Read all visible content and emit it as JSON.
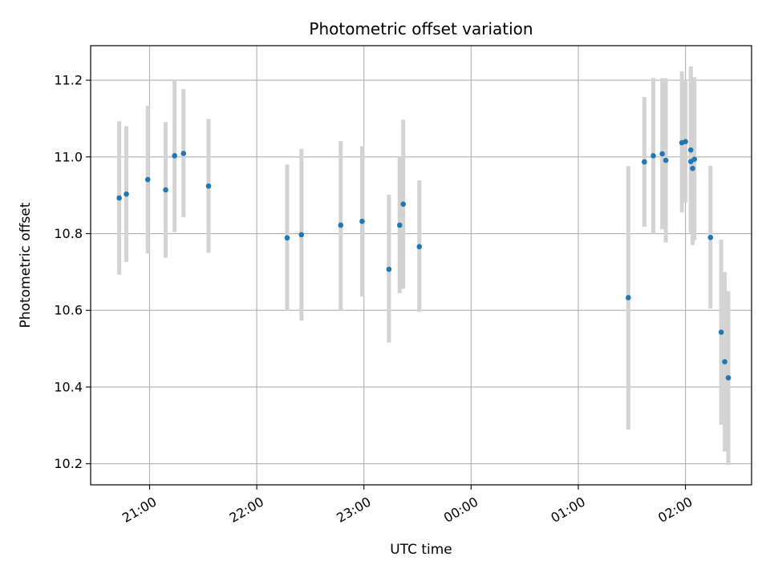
{
  "chart_data": {
    "type": "scatter",
    "title": "Photometric offset variation",
    "xlabel": "UTC time",
    "ylabel": "Photometric offset",
    "grid": true,
    "x_ticks": [
      "21:00",
      "22:00",
      "23:00",
      "00:00",
      "01:00",
      "02:00"
    ],
    "y_ticks": [
      "10.2",
      "10.4",
      "10.6",
      "10.8",
      "11.0",
      "11.2"
    ],
    "xlim": [
      "20:27",
      "02:37"
    ],
    "ylim": [
      10.145,
      11.29
    ],
    "marker_color": "#1f77b4",
    "errorbar_color": "#d3d3d3",
    "series": [
      {
        "points": [
          {
            "x": "20:43",
            "y": 10.893,
            "ylow": 10.693,
            "yhigh": 11.093
          },
          {
            "x": "20:47",
            "y": 10.903,
            "ylow": 10.726,
            "yhigh": 11.08
          },
          {
            "x": "20:59",
            "y": 10.941,
            "ylow": 10.748,
            "yhigh": 11.133
          },
          {
            "x": "21:09",
            "y": 10.914,
            "ylow": 10.737,
            "yhigh": 11.091
          },
          {
            "x": "21:14",
            "y": 11.003,
            "ylow": 10.804,
            "yhigh": 11.202
          },
          {
            "x": "21:19",
            "y": 11.009,
            "ylow": 10.843,
            "yhigh": 11.177
          },
          {
            "x": "21:33",
            "y": 10.924,
            "ylow": 10.75,
            "yhigh": 11.099
          },
          {
            "x": "22:17",
            "y": 10.789,
            "ylow": 10.599,
            "yhigh": 10.98
          },
          {
            "x": "22:25",
            "y": 10.797,
            "ylow": 10.573,
            "yhigh": 11.021
          },
          {
            "x": "22:47",
            "y": 10.822,
            "ylow": 10.6,
            "yhigh": 11.041
          },
          {
            "x": "22:59",
            "y": 10.832,
            "ylow": 10.636,
            "yhigh": 11.028
          },
          {
            "x": "23:14",
            "y": 10.707,
            "ylow": 10.516,
            "yhigh": 10.901
          },
          {
            "x": "23:20",
            "y": 10.822,
            "ylow": 10.645,
            "yhigh": 11.0
          },
          {
            "x": "23:22",
            "y": 10.877,
            "ylow": 10.656,
            "yhigh": 11.097
          },
          {
            "x": "23:31",
            "y": 10.766,
            "ylow": 10.596,
            "yhigh": 10.939
          },
          {
            "x": "01:28",
            "y": 10.633,
            "ylow": 10.289,
            "yhigh": 10.976
          },
          {
            "x": "01:37",
            "y": 10.987,
            "ylow": 10.818,
            "yhigh": 11.156
          },
          {
            "x": "01:42",
            "y": 11.003,
            "ylow": 10.8,
            "yhigh": 11.206
          },
          {
            "x": "01:47",
            "y": 11.008,
            "ylow": 10.811,
            "yhigh": 11.205
          },
          {
            "x": "01:49",
            "y": 10.991,
            "ylow": 10.777,
            "yhigh": 11.205
          },
          {
            "x": "01:58",
            "y": 11.037,
            "ylow": 10.855,
            "yhigh": 11.223
          },
          {
            "x": "02:00",
            "y": 11.04,
            "ylow": 10.881,
            "yhigh": 11.2
          },
          {
            "x": "02:03",
            "y": 10.988,
            "ylow": 10.81,
            "yhigh": 11.236
          },
          {
            "x": "02:03",
            "y": 11.018,
            "ylow": 10.802,
            "yhigh": 11.205
          },
          {
            "x": "02:04",
            "y": 10.97,
            "ylow": 10.77,
            "yhigh": 11.17
          },
          {
            "x": "02:05",
            "y": 10.994,
            "ylow": 10.783,
            "yhigh": 11.208
          },
          {
            "x": "02:14",
            "y": 10.79,
            "ylow": 10.605,
            "yhigh": 10.977
          },
          {
            "x": "02:20",
            "y": 10.543,
            "ylow": 10.302,
            "yhigh": 10.784
          },
          {
            "x": "02:22",
            "y": 10.466,
            "ylow": 10.232,
            "yhigh": 10.7
          },
          {
            "x": "02:24",
            "y": 10.424,
            "ylow": 10.197,
            "yhigh": 10.65
          }
        ]
      }
    ]
  }
}
